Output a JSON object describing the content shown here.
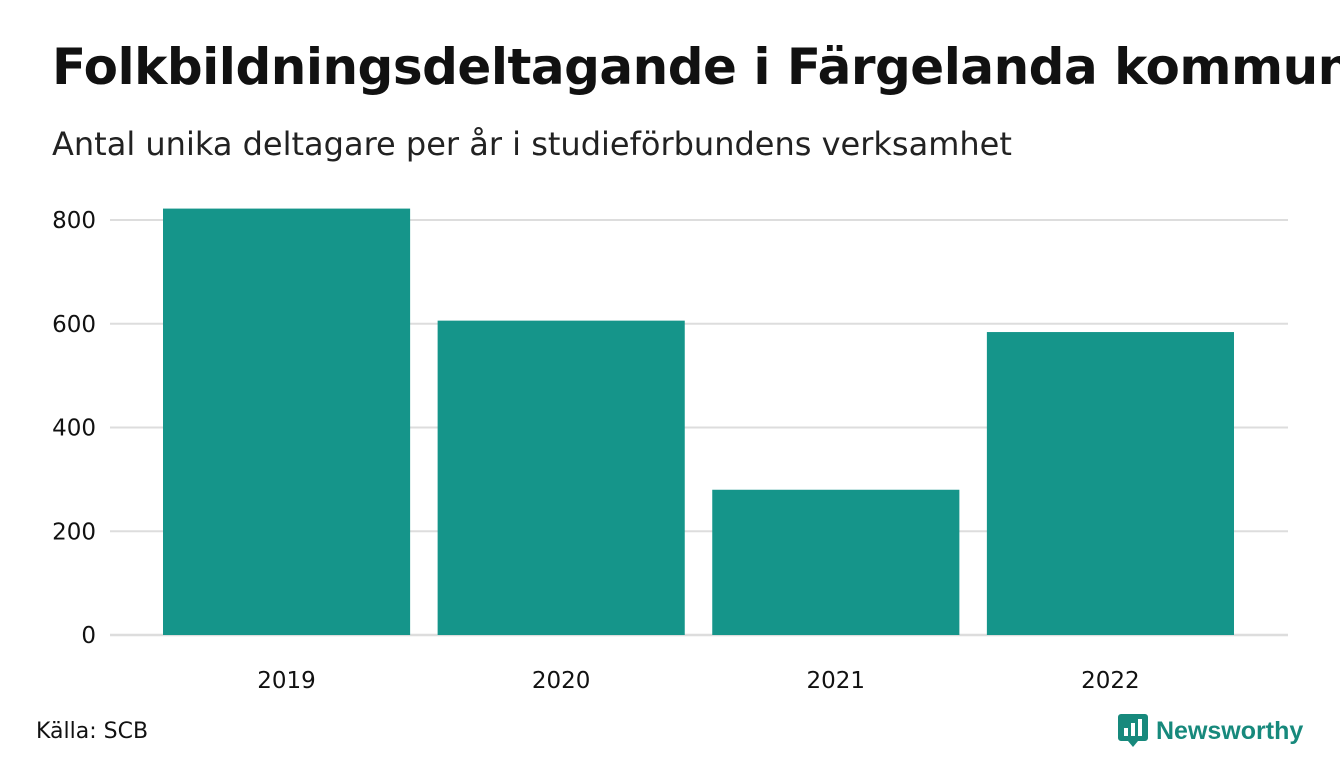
{
  "title": "Folkbildningsdeltagande i Färgelanda kommun",
  "subtitle": "Antal unika deltagare per år i studieförbundens verksamhet",
  "source": "Källa: SCB",
  "brand": {
    "name": "Newsworthy",
    "icon": "newsworthy-logo-icon",
    "color": "#17897c"
  },
  "colors": {
    "bar": "#15958a",
    "grid": "#dddddd",
    "text": "#111111"
  },
  "chart_data": {
    "type": "bar",
    "categories": [
      "2019",
      "2020",
      "2021",
      "2022"
    ],
    "values": [
      822,
      606,
      280,
      584
    ],
    "ylim": [
      0,
      800
    ],
    "yticks": [
      0,
      200,
      400,
      600,
      800
    ],
    "grid": true,
    "legend": "none"
  }
}
